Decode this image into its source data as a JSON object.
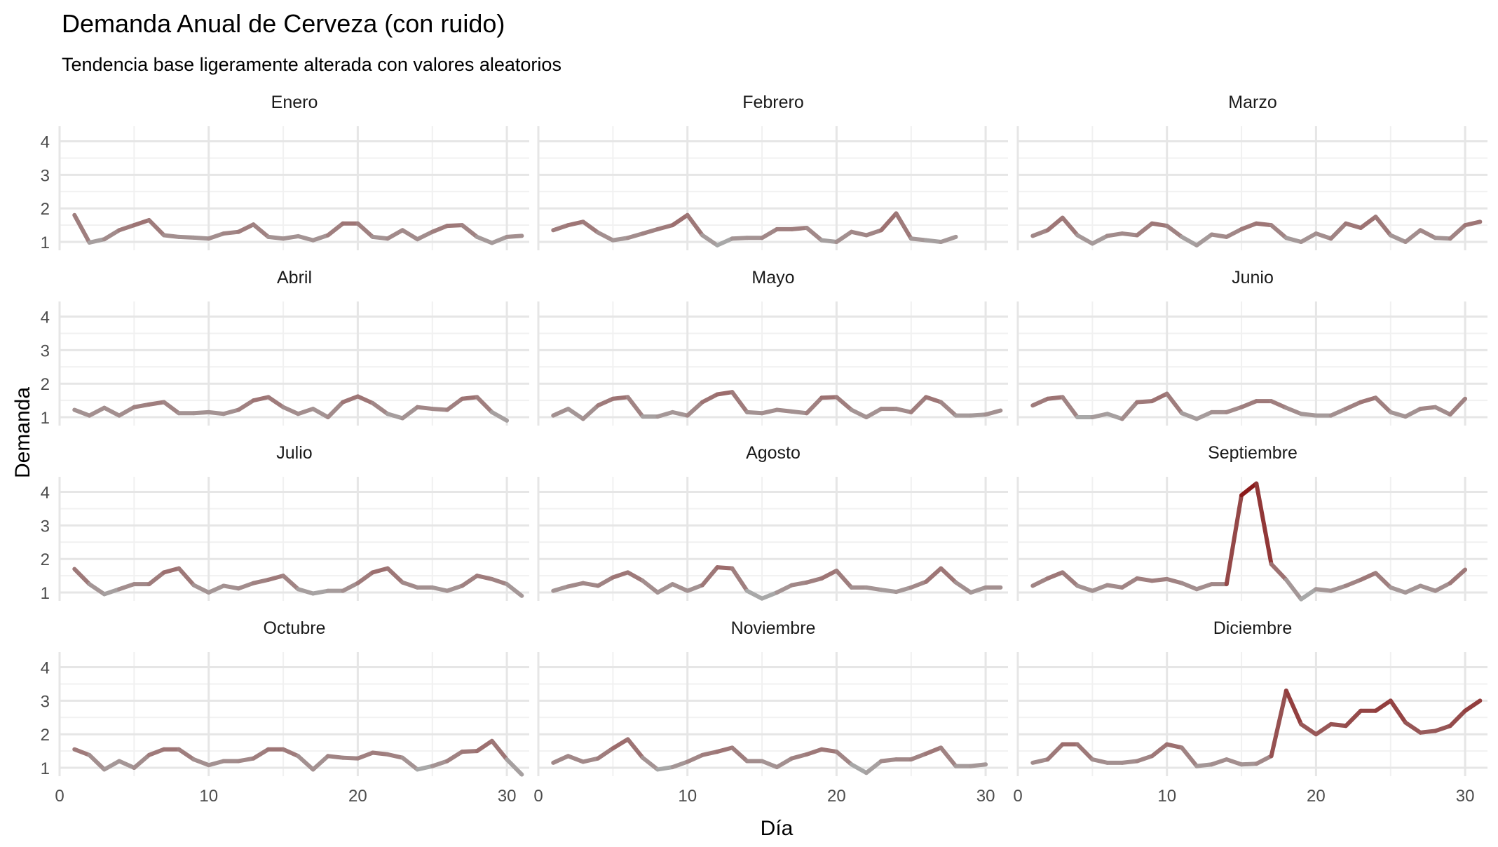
{
  "chart_data": {
    "type": "line",
    "title": "Demanda Anual de Cerveza (con ruido)",
    "subtitle": "Tendencia base ligeramente alterada con valores aleatorios",
    "xlabel": "Día",
    "ylabel": "Demanda",
    "xlim": [
      0,
      31.5
    ],
    "ylim": [
      0.75,
      4.45
    ],
    "x_ticks": [
      0,
      10,
      20,
      30
    ],
    "y_ticks": [
      1,
      2,
      3,
      4
    ],
    "grid": true,
    "facet_layout": "4 rows x 3 columns",
    "line_colors": {
      "low": "#a8a8a8",
      "high": "#8b1a1a"
    },
    "panels": [
      {
        "name": "Enero",
        "values": [
          1.8,
          0.98,
          1.08,
          1.35,
          1.5,
          1.65,
          1.2,
          1.15,
          1.13,
          1.1,
          1.25,
          1.3,
          1.52,
          1.15,
          1.1,
          1.17,
          1.05,
          1.2,
          1.55,
          1.55,
          1.15,
          1.1,
          1.35,
          1.08,
          1.3,
          1.48,
          1.5,
          1.15,
          0.97,
          1.15,
          1.18
        ]
      },
      {
        "name": "Febrero",
        "values": [
          1.35,
          1.5,
          1.6,
          1.28,
          1.05,
          1.12,
          1.25,
          1.38,
          1.5,
          1.8,
          1.2,
          0.9,
          1.1,
          1.12,
          1.12,
          1.38,
          1.38,
          1.42,
          1.05,
          1.0,
          1.3,
          1.2,
          1.35,
          1.85,
          1.1,
          1.05,
          1.0,
          1.15
        ]
      },
      {
        "name": "Marzo",
        "values": [
          1.18,
          1.35,
          1.72,
          1.2,
          0.95,
          1.18,
          1.25,
          1.2,
          1.55,
          1.48,
          1.15,
          0.9,
          1.22,
          1.15,
          1.38,
          1.55,
          1.5,
          1.12,
          1.0,
          1.25,
          1.1,
          1.55,
          1.42,
          1.75,
          1.2,
          1.0,
          1.35,
          1.12,
          1.1,
          1.5,
          1.6
        ]
      },
      {
        "name": "Abril",
        "values": [
          1.22,
          1.05,
          1.28,
          1.05,
          1.3,
          1.38,
          1.45,
          1.12,
          1.12,
          1.15,
          1.1,
          1.22,
          1.5,
          1.6,
          1.3,
          1.1,
          1.25,
          1.0,
          1.45,
          1.62,
          1.42,
          1.1,
          0.97,
          1.3,
          1.25,
          1.22,
          1.55,
          1.6,
          1.15,
          0.9
        ]
      },
      {
        "name": "Mayo",
        "values": [
          1.05,
          1.25,
          0.95,
          1.35,
          1.55,
          1.6,
          1.02,
          1.02,
          1.15,
          1.05,
          1.45,
          1.68,
          1.75,
          1.15,
          1.12,
          1.22,
          1.17,
          1.12,
          1.58,
          1.6,
          1.22,
          1.0,
          1.25,
          1.25,
          1.15,
          1.6,
          1.45,
          1.05,
          1.05,
          1.08,
          1.2
        ]
      },
      {
        "name": "Junio",
        "values": [
          1.35,
          1.55,
          1.6,
          1.0,
          1.0,
          1.1,
          0.95,
          1.45,
          1.48,
          1.7,
          1.12,
          0.95,
          1.15,
          1.15,
          1.3,
          1.48,
          1.48,
          1.28,
          1.1,
          1.05,
          1.05,
          1.25,
          1.45,
          1.58,
          1.15,
          1.02,
          1.25,
          1.3,
          1.08,
          1.55
        ]
      },
      {
        "name": "Julio",
        "values": [
          1.7,
          1.25,
          0.95,
          1.1,
          1.25,
          1.25,
          1.6,
          1.72,
          1.22,
          1.0,
          1.2,
          1.12,
          1.28,
          1.38,
          1.5,
          1.1,
          0.97,
          1.05,
          1.05,
          1.28,
          1.6,
          1.72,
          1.3,
          1.15,
          1.15,
          1.05,
          1.2,
          1.5,
          1.4,
          1.25,
          0.9
        ]
      },
      {
        "name": "Agosto",
        "values": [
          1.05,
          1.18,
          1.28,
          1.2,
          1.45,
          1.6,
          1.35,
          1.0,
          1.25,
          1.05,
          1.22,
          1.75,
          1.72,
          1.05,
          0.82,
          1.0,
          1.22,
          1.3,
          1.42,
          1.65,
          1.15,
          1.15,
          1.08,
          1.02,
          1.15,
          1.32,
          1.72,
          1.3,
          1.0,
          1.15,
          1.15
        ]
      },
      {
        "name": "Septiembre",
        "values": [
          1.2,
          1.42,
          1.6,
          1.2,
          1.05,
          1.22,
          1.15,
          1.42,
          1.35,
          1.4,
          1.28,
          1.1,
          1.25,
          1.25,
          3.9,
          4.25,
          1.85,
          1.38,
          0.8,
          1.1,
          1.05,
          1.2,
          1.38,
          1.58,
          1.15,
          1.0,
          1.2,
          1.05,
          1.28,
          1.68
        ]
      },
      {
        "name": "Octubre",
        "values": [
          1.55,
          1.38,
          0.95,
          1.2,
          1.0,
          1.38,
          1.55,
          1.55,
          1.25,
          1.08,
          1.2,
          1.2,
          1.28,
          1.55,
          1.55,
          1.35,
          0.95,
          1.35,
          1.3,
          1.28,
          1.45,
          1.4,
          1.3,
          0.95,
          1.05,
          1.2,
          1.48,
          1.5,
          1.8,
          1.25,
          0.8
        ]
      },
      {
        "name": "Noviembre",
        "values": [
          1.15,
          1.35,
          1.18,
          1.28,
          1.58,
          1.85,
          1.3,
          0.95,
          1.02,
          1.18,
          1.38,
          1.48,
          1.6,
          1.2,
          1.2,
          1.02,
          1.28,
          1.4,
          1.55,
          1.48,
          1.1,
          0.85,
          1.2,
          1.25,
          1.25,
          1.42,
          1.6,
          1.05,
          1.05,
          1.1
        ]
      },
      {
        "name": "Diciembre",
        "values": [
          1.15,
          1.25,
          1.7,
          1.7,
          1.25,
          1.15,
          1.15,
          1.2,
          1.35,
          1.7,
          1.6,
          1.05,
          1.1,
          1.25,
          1.1,
          1.12,
          1.35,
          3.3,
          2.3,
          2.0,
          2.3,
          2.25,
          2.7,
          2.7,
          3.0,
          2.35,
          2.05,
          2.1,
          2.25,
          2.7,
          3.0
        ]
      }
    ]
  }
}
